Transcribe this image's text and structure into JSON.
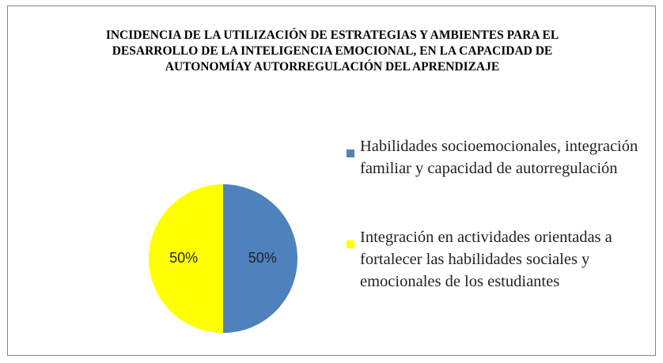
{
  "chart_data": {
    "type": "pie",
    "title": "INCIDENCIA DE LA UTILIZACIÓN DE ESTRATEGIAS Y AMBIENTES PARA EL DESARROLLO DE LA INTELIGENCIA EMOCIONAL, EN LA CAPACIDAD DE AUTONOMÍAY AUTORREGULACIÓN DEL APRENDIZAJE",
    "categories": [
      "Habilidades socioemocionales, integración familiar y capacidad de autorregulación",
      "Integración en actividades orientadas a fortalecer las habilidades sociales y emocionales de los estudiantes"
    ],
    "values": [
      50,
      50
    ],
    "value_labels": [
      "50%",
      "50%"
    ],
    "colors": [
      "#4f81bd",
      "#ffff00"
    ],
    "legend": "right"
  }
}
